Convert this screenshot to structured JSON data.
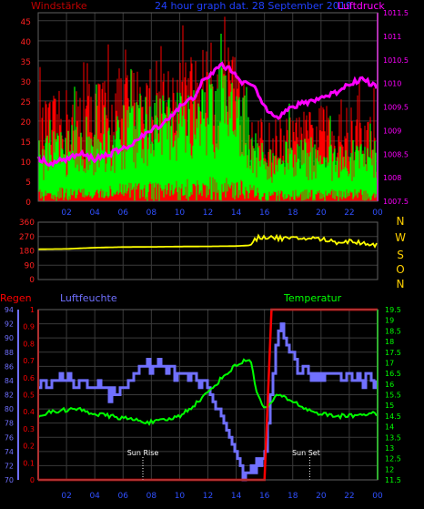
{
  "header": {
    "left": "Windstärke",
    "center": "24 hour graph dat.  28 September 2019",
    "right": "Luftdruck"
  },
  "colors": {
    "windstaerke_label": "#c00000",
    "wind_axis": "#ff2020",
    "wind_max": "#ff0000",
    "wind_avg": "#00ff00",
    "pressure": "#ff00ff",
    "direction": "#ffff00",
    "compass": "#ffd000",
    "center_title": "#2040ff",
    "regen": "#ff0000",
    "luftfeuchte": "#7070ff",
    "temperatur": "#00ff00",
    "x_axis": "#3050ff",
    "grid": "#3a3a3a",
    "frame": "#606060",
    "sun": "#ffffff"
  },
  "x_ticks": [
    "02",
    "04",
    "06",
    "08",
    "10",
    "12",
    "14",
    "16",
    "18",
    "20",
    "22",
    "00"
  ],
  "compass_letters": [
    "N",
    "W",
    "S",
    "O",
    "N"
  ],
  "labels": {
    "regen": "Regen",
    "luftfeuchte": "Luftfeuchte",
    "temperatur": "Temperatur",
    "sun_rise": "Sun Rise",
    "sun_set": "Sun Set"
  },
  "chart_data": [
    {
      "type": "line",
      "name": "wind-pressure",
      "x_range_hours": [
        0,
        24
      ],
      "y_left": {
        "label": "Windstärke",
        "ticks": [
          0,
          5,
          10,
          15,
          20,
          25,
          30,
          35,
          40,
          45
        ],
        "range": [
          0,
          47
        ]
      },
      "y_right": {
        "label": "Luftdruck",
        "ticks": [
          "1007.5",
          "1008",
          "1008.5",
          "1009",
          "1009.5",
          "1010",
          "1010.5",
          "1011",
          "1011.5"
        ],
        "range": [
          1007.5,
          1011.5
        ]
      },
      "pressure_points": [
        [
          0,
          1008.4
        ],
        [
          1,
          1008.3
        ],
        [
          2,
          1008.4
        ],
        [
          3,
          1008.5
        ],
        [
          4,
          1008.4
        ],
        [
          5,
          1008.5
        ],
        [
          6,
          1008.6
        ],
        [
          7,
          1008.8
        ],
        [
          8,
          1009.0
        ],
        [
          9,
          1009.2
        ],
        [
          10,
          1009.5
        ],
        [
          11,
          1009.7
        ],
        [
          11.5,
          1010.0
        ],
        [
          12,
          1010.1
        ],
        [
          12.5,
          1010.3
        ],
        [
          13,
          1010.4
        ],
        [
          13.5,
          1010.3
        ],
        [
          14,
          1010.2
        ],
        [
          14.5,
          1010.0
        ],
        [
          15,
          1010.0
        ],
        [
          15.5,
          1009.8
        ],
        [
          16,
          1009.5
        ],
        [
          16.5,
          1009.4
        ],
        [
          17,
          1009.3
        ],
        [
          17.5,
          1009.4
        ],
        [
          18,
          1009.5
        ],
        [
          19,
          1009.6
        ],
        [
          20,
          1009.7
        ],
        [
          21,
          1009.8
        ],
        [
          22,
          1010.0
        ],
        [
          23,
          1010.1
        ],
        [
          23.5,
          1010.0
        ],
        [
          24,
          1009.9
        ]
      ],
      "wind_avg_envelope": [
        [
          0,
          10
        ],
        [
          2,
          12
        ],
        [
          4,
          12
        ],
        [
          6,
          15
        ],
        [
          8,
          17
        ],
        [
          10,
          18
        ],
        [
          12,
          20
        ],
        [
          13,
          22
        ],
        [
          14,
          20
        ],
        [
          15,
          15
        ],
        [
          16,
          8
        ],
        [
          17,
          9
        ],
        [
          18,
          10
        ],
        [
          20,
          10
        ],
        [
          22,
          10
        ],
        [
          24,
          10
        ]
      ],
      "wind_max_envelope": [
        [
          0,
          20
        ],
        [
          2,
          24
        ],
        [
          4,
          26
        ],
        [
          6,
          28
        ],
        [
          8,
          30
        ],
        [
          10,
          30
        ],
        [
          12,
          33
        ],
        [
          13,
          34
        ],
        [
          14,
          30
        ],
        [
          15,
          22
        ],
        [
          16,
          16
        ],
        [
          17,
          18
        ],
        [
          18,
          18
        ],
        [
          20,
          20
        ],
        [
          22,
          20
        ],
        [
          24,
          18
        ]
      ]
    },
    {
      "type": "line",
      "name": "wind-direction",
      "y_ticks": [
        0,
        90,
        180,
        270,
        360
      ],
      "range": [
        0,
        360
      ],
      "points": [
        [
          0,
          190
        ],
        [
          2,
          192
        ],
        [
          4,
          200
        ],
        [
          6,
          204
        ],
        [
          8,
          205
        ],
        [
          10,
          207
        ],
        [
          12,
          208
        ],
        [
          14,
          210
        ],
        [
          15,
          215
        ],
        [
          15.5,
          260
        ],
        [
          16,
          270
        ],
        [
          17,
          260
        ],
        [
          18,
          255
        ],
        [
          19,
          260
        ],
        [
          20,
          255
        ],
        [
          21,
          235
        ],
        [
          22,
          240
        ],
        [
          23,
          230
        ],
        [
          24,
          215
        ]
      ]
    },
    {
      "type": "line",
      "name": "humidity-temperature-rain",
      "y_left_rain": {
        "label": "Regen",
        "ticks": [
          "0",
          "0.1",
          "0.2",
          "0.3",
          "0.4",
          "0.5",
          "0.6",
          "0.7",
          "0.8",
          "0.9",
          "1"
        ],
        "range": [
          0,
          1
        ]
      },
      "y_left_humidity": {
        "label": "Luftfeuchte",
        "ticks": [
          70,
          72,
          74,
          76,
          78,
          80,
          82,
          84,
          86,
          88,
          90,
          92,
          94
        ],
        "range": [
          70,
          94
        ]
      },
      "y_right_temp": {
        "label": "Temperatur",
        "ticks": [
          "11.5",
          "12",
          "12.5",
          "13",
          "13.5",
          "14",
          "14.5",
          "15",
          "15.5",
          "16",
          "16.5",
          "17",
          "17.5",
          "18",
          "18.5",
          "19",
          "19.5"
        ],
        "range": [
          11.5,
          19.5
        ]
      },
      "humidity_points": [
        [
          0,
          84
        ],
        [
          2,
          84
        ],
        [
          3,
          84
        ],
        [
          4,
          83
        ],
        [
          5,
          82
        ],
        [
          6,
          83
        ],
        [
          7,
          85
        ],
        [
          8,
          86
        ],
        [
          9,
          86
        ],
        [
          10,
          85
        ],
        [
          11,
          84
        ],
        [
          12,
          83
        ],
        [
          12.5,
          80
        ],
        [
          13,
          78
        ],
        [
          13.5,
          76
        ],
        [
          14,
          74
        ],
        [
          14.5,
          71
        ],
        [
          15,
          71
        ],
        [
          15.5,
          72
        ],
        [
          16,
          73
        ],
        [
          16.5,
          84
        ],
        [
          17,
          92
        ],
        [
          17.5,
          90
        ],
        [
          18,
          87
        ],
        [
          19,
          85
        ],
        [
          20,
          84
        ],
        [
          21,
          85
        ],
        [
          22,
          85
        ],
        [
          23,
          84
        ],
        [
          24,
          84
        ]
      ],
      "temperature_points": [
        [
          0,
          14.5
        ],
        [
          1,
          14.7
        ],
        [
          2,
          14.8
        ],
        [
          3,
          14.8
        ],
        [
          4,
          14.6
        ],
        [
          5,
          14.5
        ],
        [
          6,
          14.4
        ],
        [
          7,
          14.3
        ],
        [
          8,
          14.2
        ],
        [
          9,
          14.3
        ],
        [
          10,
          14.5
        ],
        [
          11,
          15.0
        ],
        [
          12,
          15.6
        ],
        [
          13,
          16.3
        ],
        [
          14,
          16.9
        ],
        [
          15,
          17.2
        ],
        [
          15.5,
          15.5
        ],
        [
          16,
          14.8
        ],
        [
          17,
          15.5
        ],
        [
          18,
          15.2
        ],
        [
          19,
          14.8
        ],
        [
          20,
          14.6
        ],
        [
          21,
          14.5
        ],
        [
          22,
          14.5
        ],
        [
          23,
          14.6
        ],
        [
          24,
          14.6
        ]
      ],
      "rain_points": [
        [
          0,
          0
        ],
        [
          16,
          0
        ],
        [
          16.5,
          1
        ],
        [
          24,
          1
        ]
      ],
      "sun_rise_hour": 7.4,
      "sun_set_hour": 19.2
    }
  ]
}
